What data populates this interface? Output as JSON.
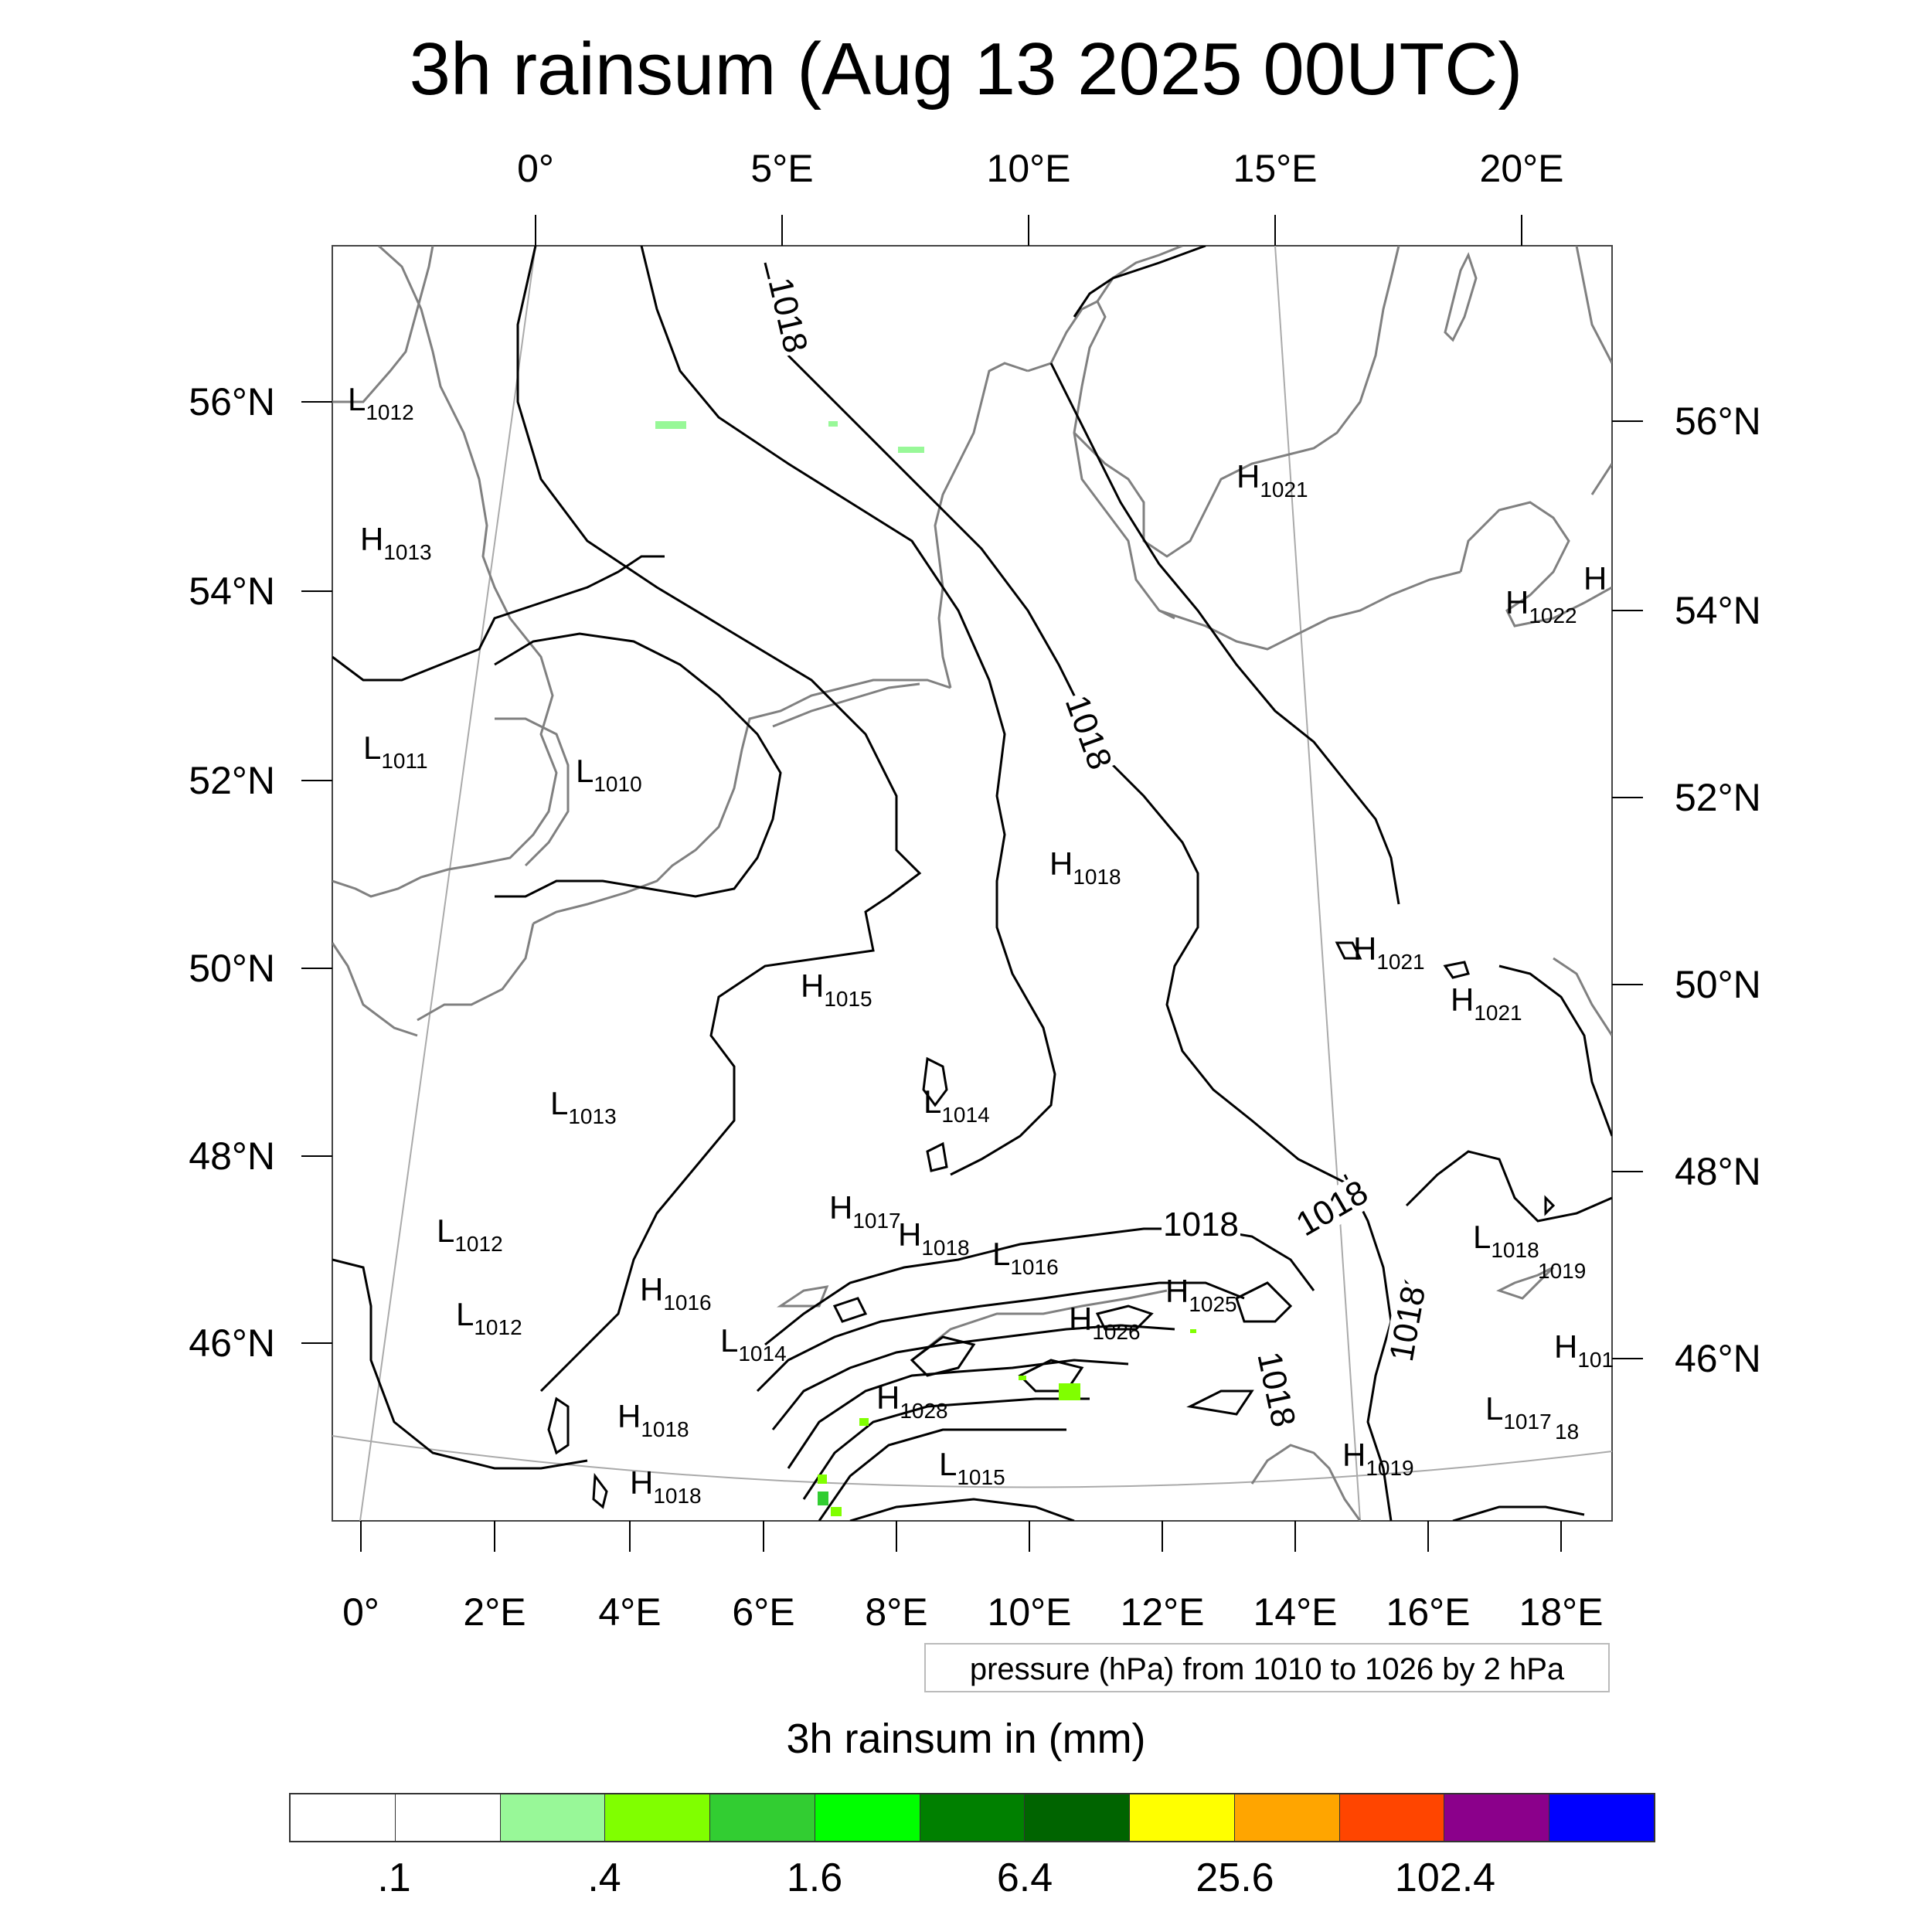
{
  "title": "3h rainsum (Aug 13 2025 00UTC)",
  "axes": {
    "top_ticks": [
      "0°",
      "5°E",
      "10°E",
      "15°E",
      "20°E"
    ],
    "bottom_ticks": [
      "0°",
      "2°E",
      "4°E",
      "6°E",
      "8°E",
      "10°E",
      "12°E",
      "14°E",
      "16°E",
      "18°E"
    ],
    "left_ticks": [
      "56°N",
      "54°N",
      "52°N",
      "50°N",
      "48°N",
      "46°N"
    ],
    "right_ticks": [
      "56°N",
      "54°N",
      "52°N",
      "50°N",
      "48°N",
      "46°N"
    ]
  },
  "pressure_info": "pressure (hPa) from 1010 to 1026 by 2 hPa",
  "contour_labels": [
    "1018",
    "1018",
    "1018",
    "1018",
    "1018",
    "1018"
  ],
  "pressure_centers": [
    {
      "type": "L",
      "value": "1012"
    },
    {
      "type": "H",
      "value": "1013"
    },
    {
      "type": "L",
      "value": "1011"
    },
    {
      "type": "L",
      "value": "1010"
    },
    {
      "type": "H",
      "value": "1021"
    },
    {
      "type": "H",
      "value": "1022"
    },
    {
      "type": "H",
      "value": ""
    },
    {
      "type": "H",
      "value": "1018"
    },
    {
      "type": "H",
      "value": "1015"
    },
    {
      "type": "H",
      "value": "1021"
    },
    {
      "type": "H",
      "value": "1021"
    },
    {
      "type": "L",
      "value": "1013"
    },
    {
      "type": "L",
      "value": "1014"
    },
    {
      "type": "L",
      "value": "1012"
    },
    {
      "type": "L",
      "value": "1012"
    },
    {
      "type": "H",
      "value": "1016"
    },
    {
      "type": "H",
      "value": "1017"
    },
    {
      "type": "H",
      "value": "1018"
    },
    {
      "type": "L",
      "value": "1016"
    },
    {
      "type": "H",
      "value": "1025"
    },
    {
      "type": "H",
      "value": "1026"
    },
    {
      "type": "L",
      "value": "1014"
    },
    {
      "type": "H",
      "value": "1028"
    },
    {
      "type": "H",
      "value": "1018"
    },
    {
      "type": "H",
      "value": "1018"
    },
    {
      "type": "L",
      "value": "1015"
    },
    {
      "type": "H",
      "value": "1019"
    },
    {
      "type": "L",
      "value": "1018"
    },
    {
      "type": "L",
      "value": "1017"
    },
    {
      "type": "H",
      "value": "101"
    }
  ],
  "extra_text": [
    "1019",
    "18"
  ],
  "colorbar": {
    "title": "3h rainsum in (mm)",
    "colors": [
      "#ffffff",
      "#ffffff",
      "#98f898",
      "#80ff00",
      "#32cd32",
      "#00ff00",
      "#008000",
      "#006400",
      "#ffff00",
      "#ffa500",
      "#ff4500",
      "#8b008b",
      "#0000ff"
    ],
    "labels": [
      ".1",
      ".4",
      "1.6",
      "6.4",
      "25.6",
      "102.4"
    ]
  },
  "colors": {
    "coastline": "#808080",
    "isobar": "#000000",
    "graticule": "#aaaaaa",
    "rain_light": "#98f898",
    "rain_medium": "#80ff00",
    "rain_green": "#32cd32"
  }
}
